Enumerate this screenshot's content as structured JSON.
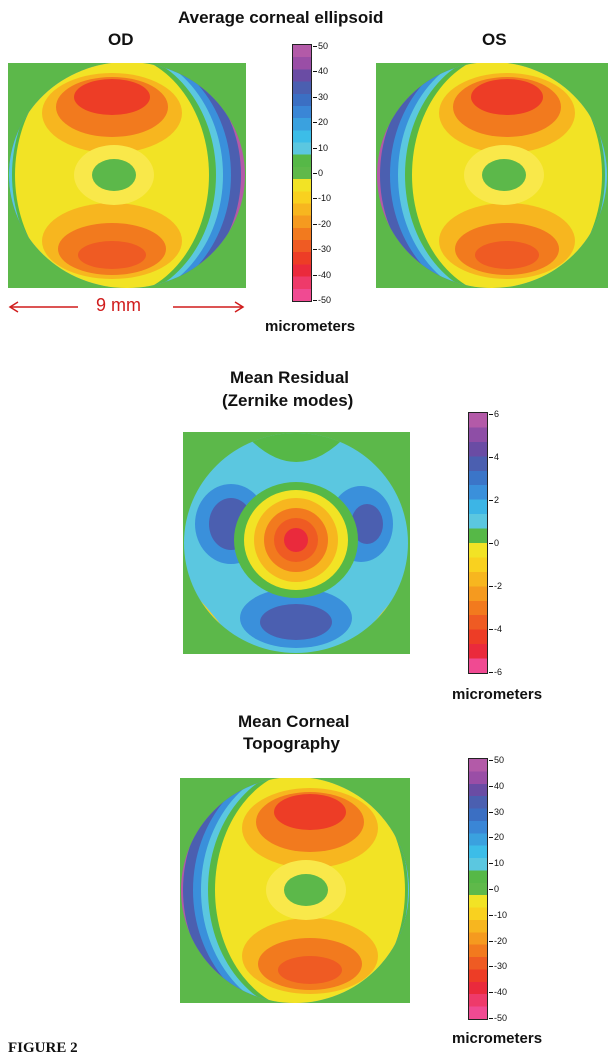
{
  "figure": {
    "title_top": "Average corneal ellipsoid",
    "label_od": "OD",
    "label_os": "OS",
    "scale_label": "9 mm",
    "title_residual_line1": "Mean Residual",
    "title_residual_line2": "(Zernike modes)",
    "title_topo_line1": "Mean Corneal",
    "title_topo_line2": "Topography",
    "units_label": "micrometers",
    "caption": "FIGURE 2"
  },
  "colorbar_large": {
    "ticks": [
      "50",
      "40",
      "30",
      "20",
      "10",
      "0",
      "-10",
      "-20",
      "-30",
      "-40",
      "-50"
    ],
    "colors": [
      "#b35aa8",
      "#9a4ea6",
      "#6a4ca4",
      "#4b5fb0",
      "#3b6fc3",
      "#3a86d6",
      "#3aa1df",
      "#3cbde8",
      "#5bc7e0",
      "#56b847",
      "#5fb94a",
      "#f2e325",
      "#f9d11f",
      "#f7b61f",
      "#f59a1f",
      "#f27a1e",
      "#ef5b23",
      "#ed3d26",
      "#ea2a3c",
      "#ee3a6a",
      "#f04a92"
    ]
  },
  "colorbar_small": {
    "ticks": [
      "6",
      "4",
      "2",
      "0",
      "-2",
      "-4",
      "-6"
    ],
    "colors": [
      "#b35aa8",
      "#8e4ea6",
      "#6a4ca4",
      "#4b5fb0",
      "#3b75c8",
      "#3a90db",
      "#3cb5e6",
      "#5bc7e0",
      "#56b847",
      "#f2e325",
      "#f9d11f",
      "#f7b61f",
      "#f59a1f",
      "#f27a1e",
      "#ef5b23",
      "#ed3d26",
      "#ea2a3c",
      "#f04a92"
    ]
  }
}
